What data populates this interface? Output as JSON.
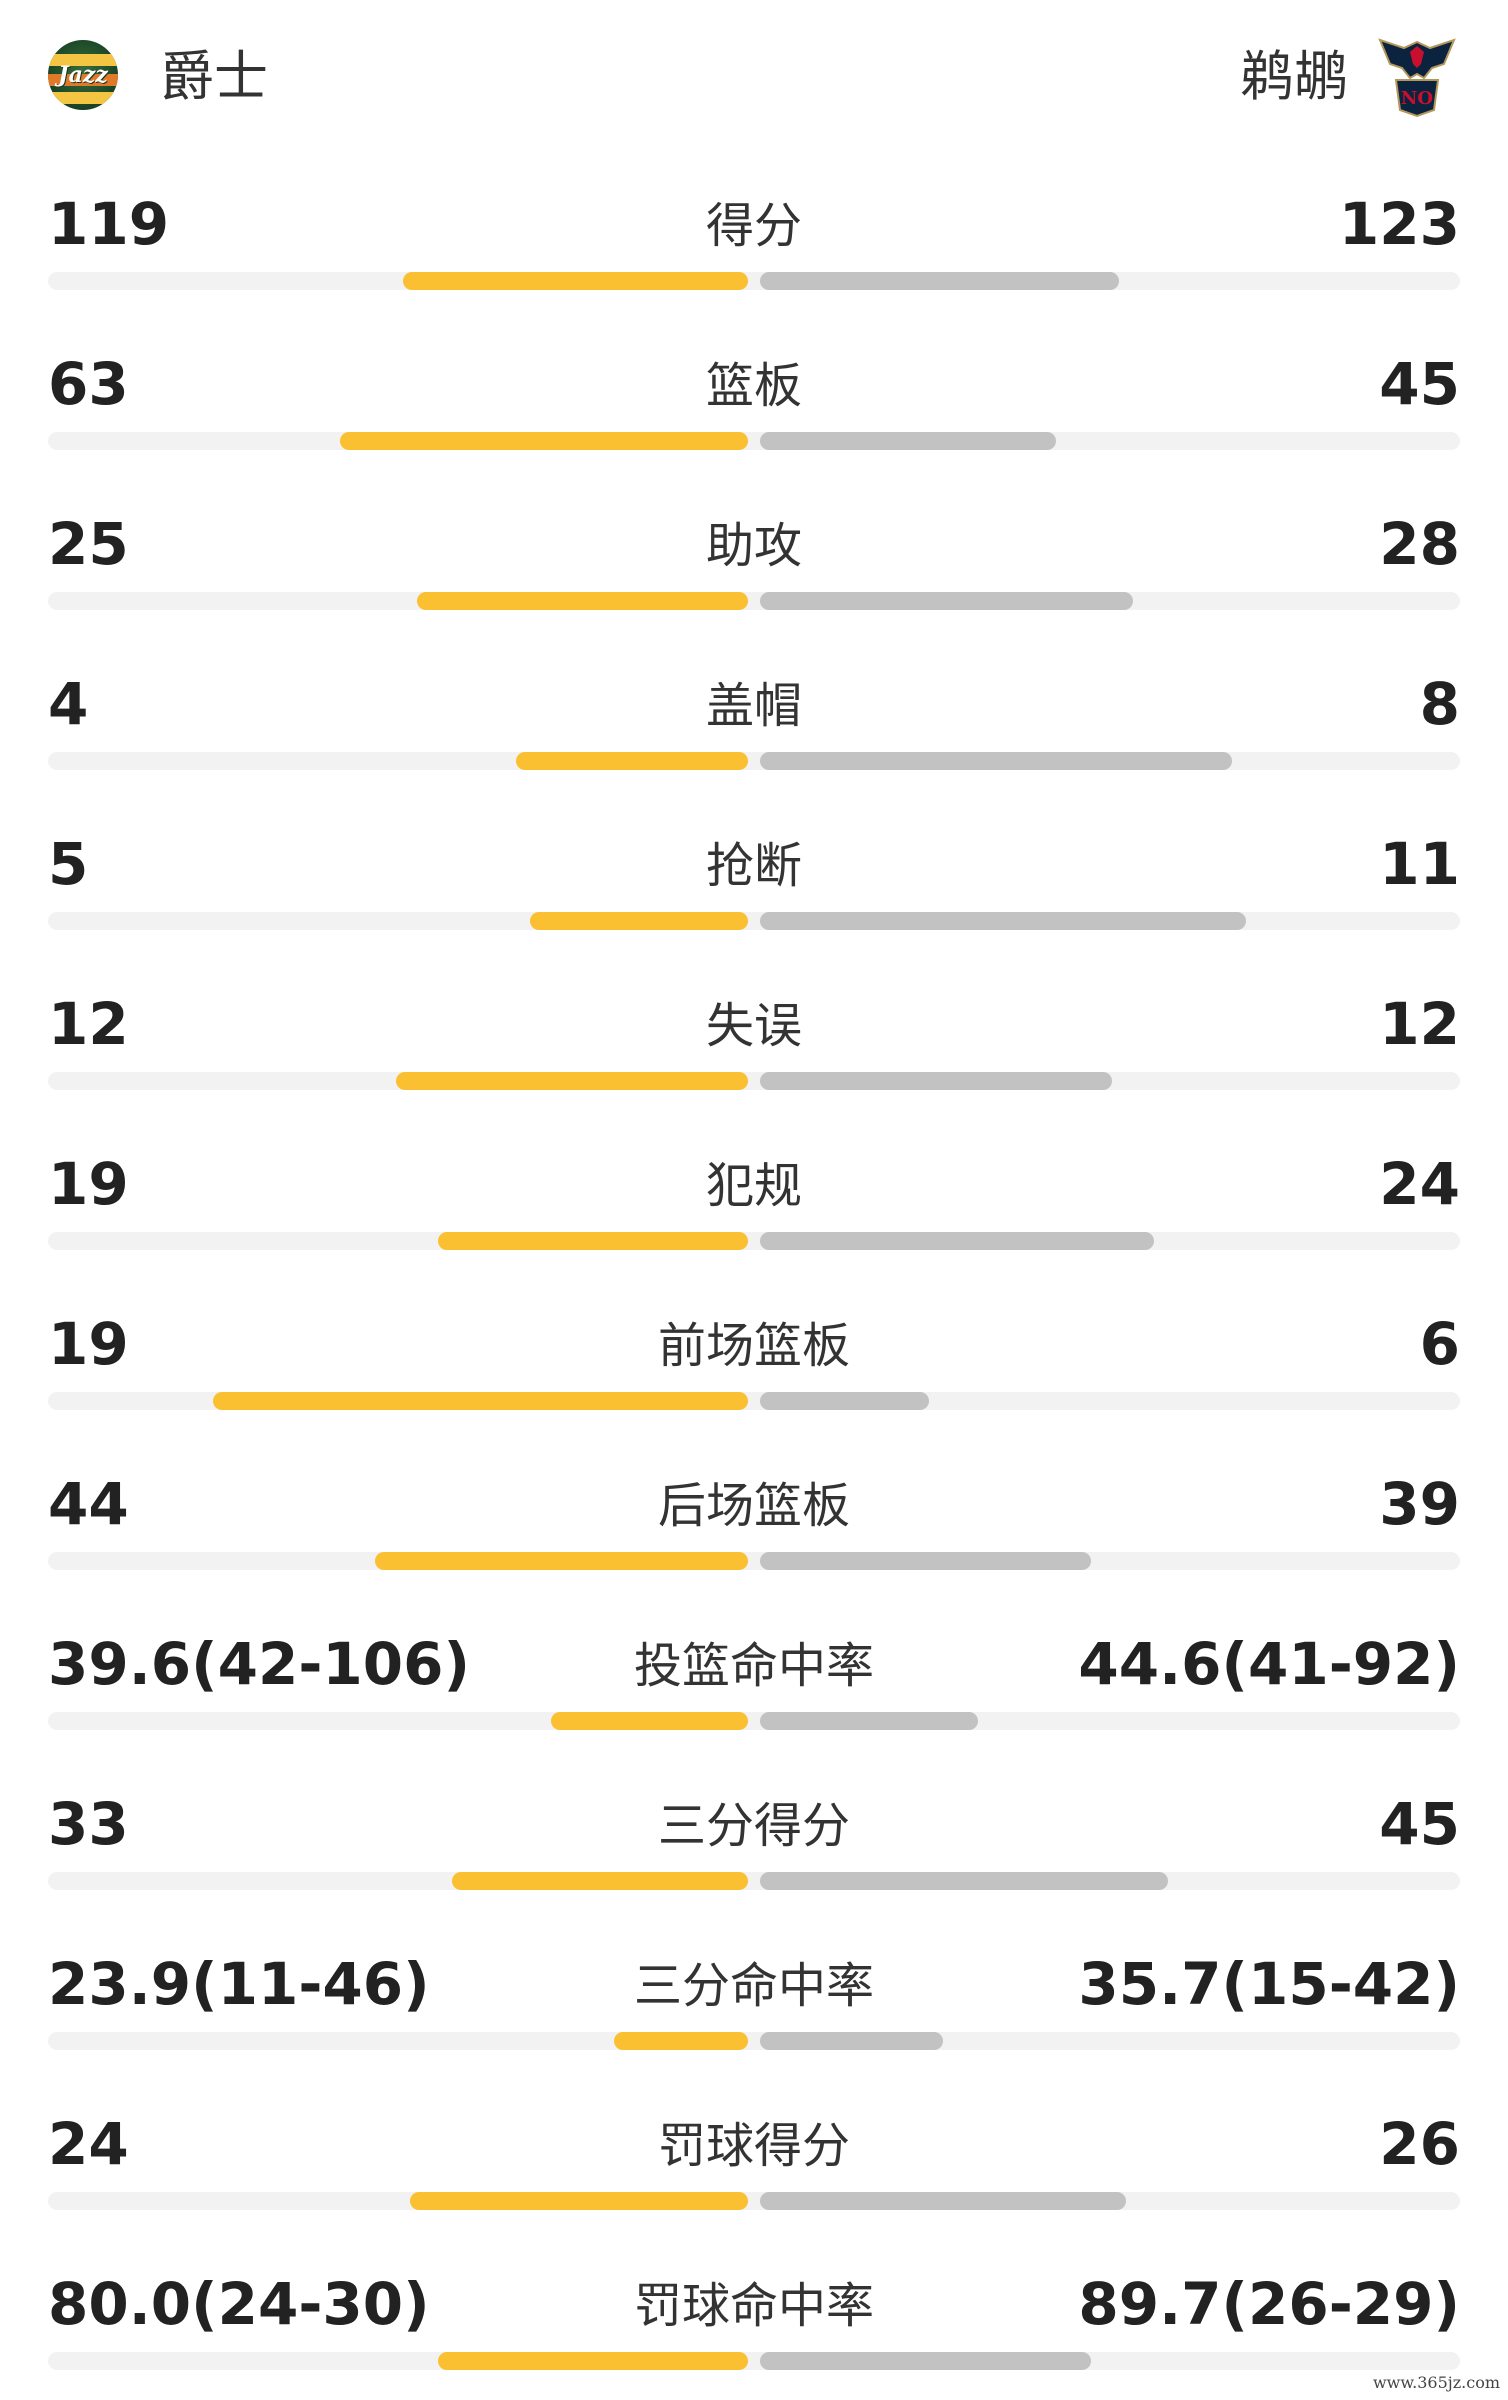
{
  "header": {
    "home_team": "爵士",
    "away_team": "鹈鹕",
    "home_logo_text": "Jazz",
    "away_logo_text": "NO"
  },
  "colors": {
    "home_bar": "#fbbf32",
    "away_bar": "#c2c2c2",
    "track": "#f2f2f2"
  },
  "stats": [
    {
      "label": "得分",
      "home": "119",
      "away": "123",
      "home_fill": 0.49,
      "away_fill": 0.51
    },
    {
      "label": "篮板",
      "home": "63",
      "away": "45",
      "home_fill": 0.58,
      "away_fill": 0.42
    },
    {
      "label": "助攻",
      "home": "25",
      "away": "28",
      "home_fill": 0.47,
      "away_fill": 0.53
    },
    {
      "label": "盖帽",
      "home": "4",
      "away": "8",
      "home_fill": 0.33,
      "away_fill": 0.67
    },
    {
      "label": "抢断",
      "home": "5",
      "away": "11",
      "home_fill": 0.31,
      "away_fill": 0.69
    },
    {
      "label": "失误",
      "home": "12",
      "away": "12",
      "home_fill": 0.5,
      "away_fill": 0.5
    },
    {
      "label": "犯规",
      "home": "19",
      "away": "24",
      "home_fill": 0.44,
      "away_fill": 0.56
    },
    {
      "label": "前场篮板",
      "home": "19",
      "away": "6",
      "home_fill": 0.76,
      "away_fill": 0.24
    },
    {
      "label": "后场篮板",
      "home": "44",
      "away": "39",
      "home_fill": 0.53,
      "away_fill": 0.47
    },
    {
      "label": "投篮命中率",
      "home": "39.6(42-106)",
      "away": "44.6(41-92)",
      "home_fill": 0.28,
      "away_fill": 0.31
    },
    {
      "label": "三分得分",
      "home": "33",
      "away": "45",
      "home_fill": 0.42,
      "away_fill": 0.58
    },
    {
      "label": "三分命中率",
      "home": "23.9(11-46)",
      "away": "35.7(15-42)",
      "home_fill": 0.19,
      "away_fill": 0.26
    },
    {
      "label": "罚球得分",
      "home": "24",
      "away": "26",
      "home_fill": 0.48,
      "away_fill": 0.52
    },
    {
      "label": "罚球命中率",
      "home": "80.0(24-30)",
      "away": "89.7(26-29)",
      "home_fill": 0.44,
      "away_fill": 0.47
    }
  ],
  "watermark": "www.365jz.com"
}
